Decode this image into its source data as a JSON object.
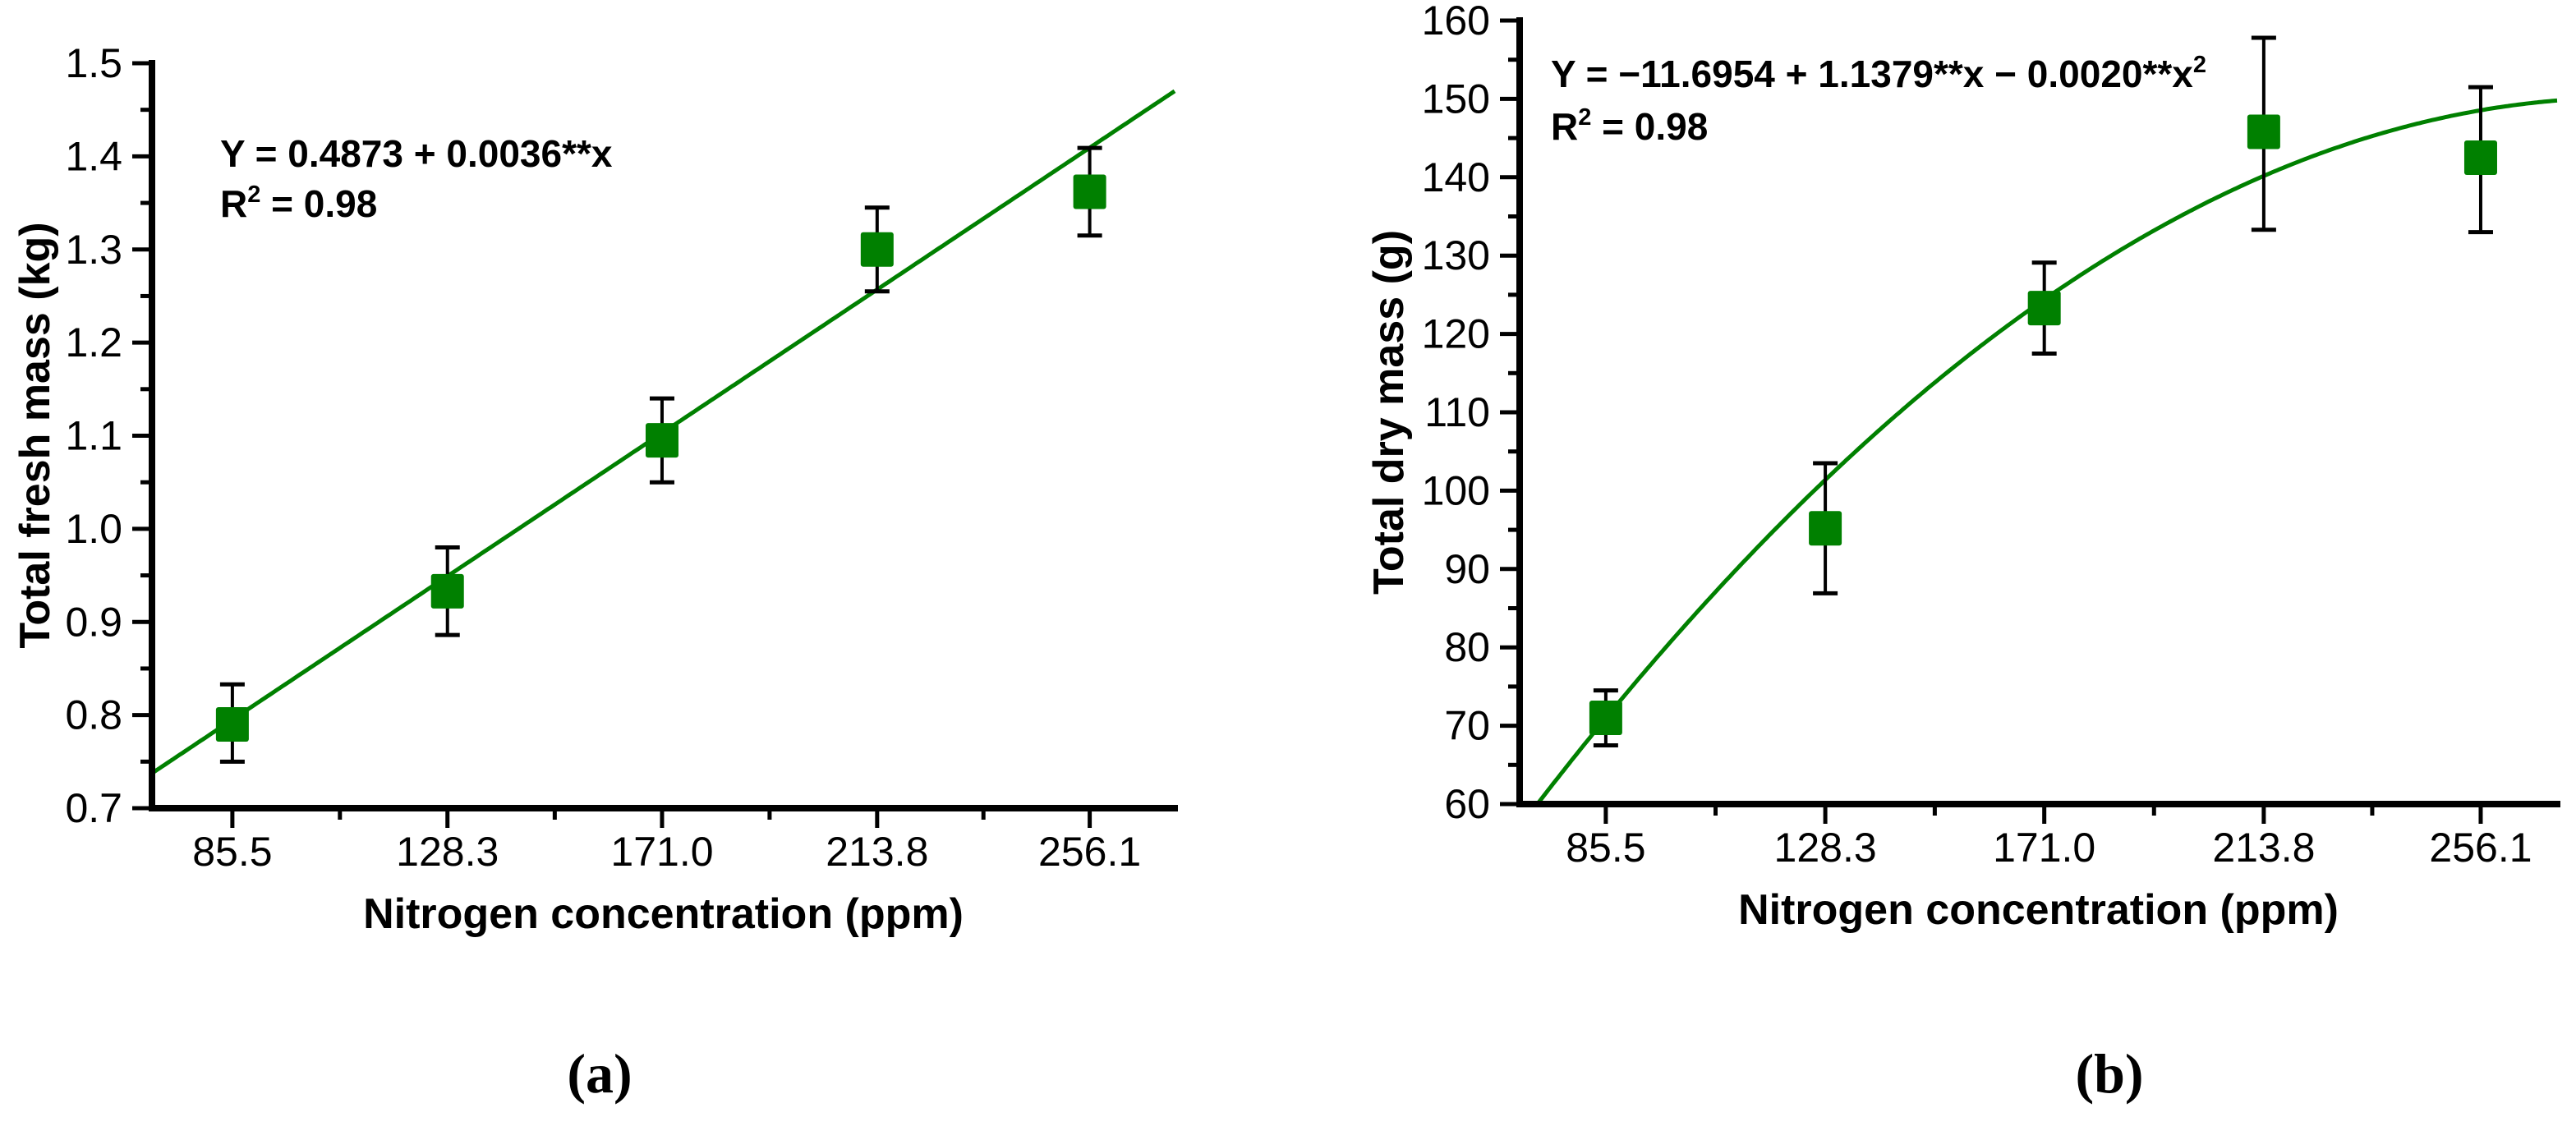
{
  "background_color": "#ffffff",
  "accent_green": "#008000",
  "panels": [
    {
      "panel_label": "(a)",
      "equation": "Y = 0.4873 + 0.0036**x",
      "r_squared_label": "R² = 0.98",
      "xlabel": "Nitrogen concentration (ppm)",
      "ylabel": "Total fresh mass (kg)"
    },
    {
      "panel_label": "(b)",
      "equation": "Y = −11.6954 + 1.1379**x − 0.0020**x²",
      "r_squared_label": "R² = 0.98",
      "xlabel": "Nitrogen concentration (ppm)",
      "ylabel": "Total dry mass (g)"
    }
  ],
  "chart_data": [
    {
      "type": "scatter",
      "panel": "a",
      "title": "",
      "xlabel": "Nitrogen concentration (ppm)",
      "ylabel": "Total fresh mass (kg)",
      "x": [
        85.5,
        128.3,
        171.0,
        213.8,
        256.1
      ],
      "y": [
        0.79,
        0.933,
        1.095,
        1.3,
        1.362
      ],
      "y_err_plus": [
        0.043,
        0.047,
        0.045,
        0.045,
        0.047
      ],
      "y_err_minus": [
        0.04,
        0.047,
        0.045,
        0.045,
        0.047
      ],
      "x_ticks": [
        85.5,
        128.3,
        171.0,
        213.8,
        256.1
      ],
      "x_tick_labels": [
        "85.5",
        "128.3",
        "171.0",
        "213.8",
        "256.1"
      ],
      "y_ticks": [
        0.7,
        0.8,
        0.9,
        1.0,
        1.1,
        1.2,
        1.3,
        1.4,
        1.5
      ],
      "y_tick_labels": [
        "0.7",
        "0.8",
        "0.9",
        "1.0",
        "1.1",
        "1.2",
        "1.3",
        "1.4",
        "1.5"
      ],
      "xlim": [
        69.5,
        273.0
      ],
      "ylim": [
        0.7,
        1.5
      ],
      "grid": false,
      "legend": "none",
      "marker": "filled-square",
      "marker_color": "#008000",
      "line_color": "#008000",
      "fit": {
        "type": "linear",
        "equation": "Y = 0.4873 + 0.0036**x",
        "intercept": 0.4873,
        "slope": 0.0036,
        "r_squared": 0.98
      }
    },
    {
      "type": "scatter",
      "panel": "b",
      "title": "",
      "xlabel": "Nitrogen concentration (ppm)",
      "ylabel": "Total dry mass (g)",
      "x": [
        85.5,
        128.3,
        171.0,
        213.8,
        256.1
      ],
      "y": [
        71.0,
        95.2,
        123.3,
        145.8,
        142.5
      ],
      "y_err_plus": [
        3.5,
        8.3,
        5.8,
        12.0,
        9.0
      ],
      "y_err_minus": [
        3.5,
        8.3,
        5.8,
        12.5,
        9.5
      ],
      "x_ticks": [
        85.5,
        128.3,
        171.0,
        213.8,
        256.1
      ],
      "x_tick_labels": [
        "85.5",
        "128.3",
        "171.0",
        "213.8",
        "256.1"
      ],
      "y_ticks": [
        60,
        70,
        80,
        90,
        100,
        110,
        120,
        130,
        140,
        150,
        160
      ],
      "y_tick_labels": [
        "60",
        "70",
        "80",
        "90",
        "100",
        "110",
        "120",
        "130",
        "140",
        "150",
        "160"
      ],
      "xlim": [
        68.7,
        271.0
      ],
      "ylim": [
        60,
        160
      ],
      "grid": false,
      "legend": "none",
      "marker": "filled-square",
      "marker_color": "#008000",
      "line_color": "#008000",
      "fit": {
        "type": "quadratic",
        "equation": "Y = −11.6954 + 1.1379**x − 0.0020**x²",
        "a": -11.6954,
        "b": 1.1379,
        "c": -0.002,
        "r_squared": 0.98
      }
    }
  ]
}
